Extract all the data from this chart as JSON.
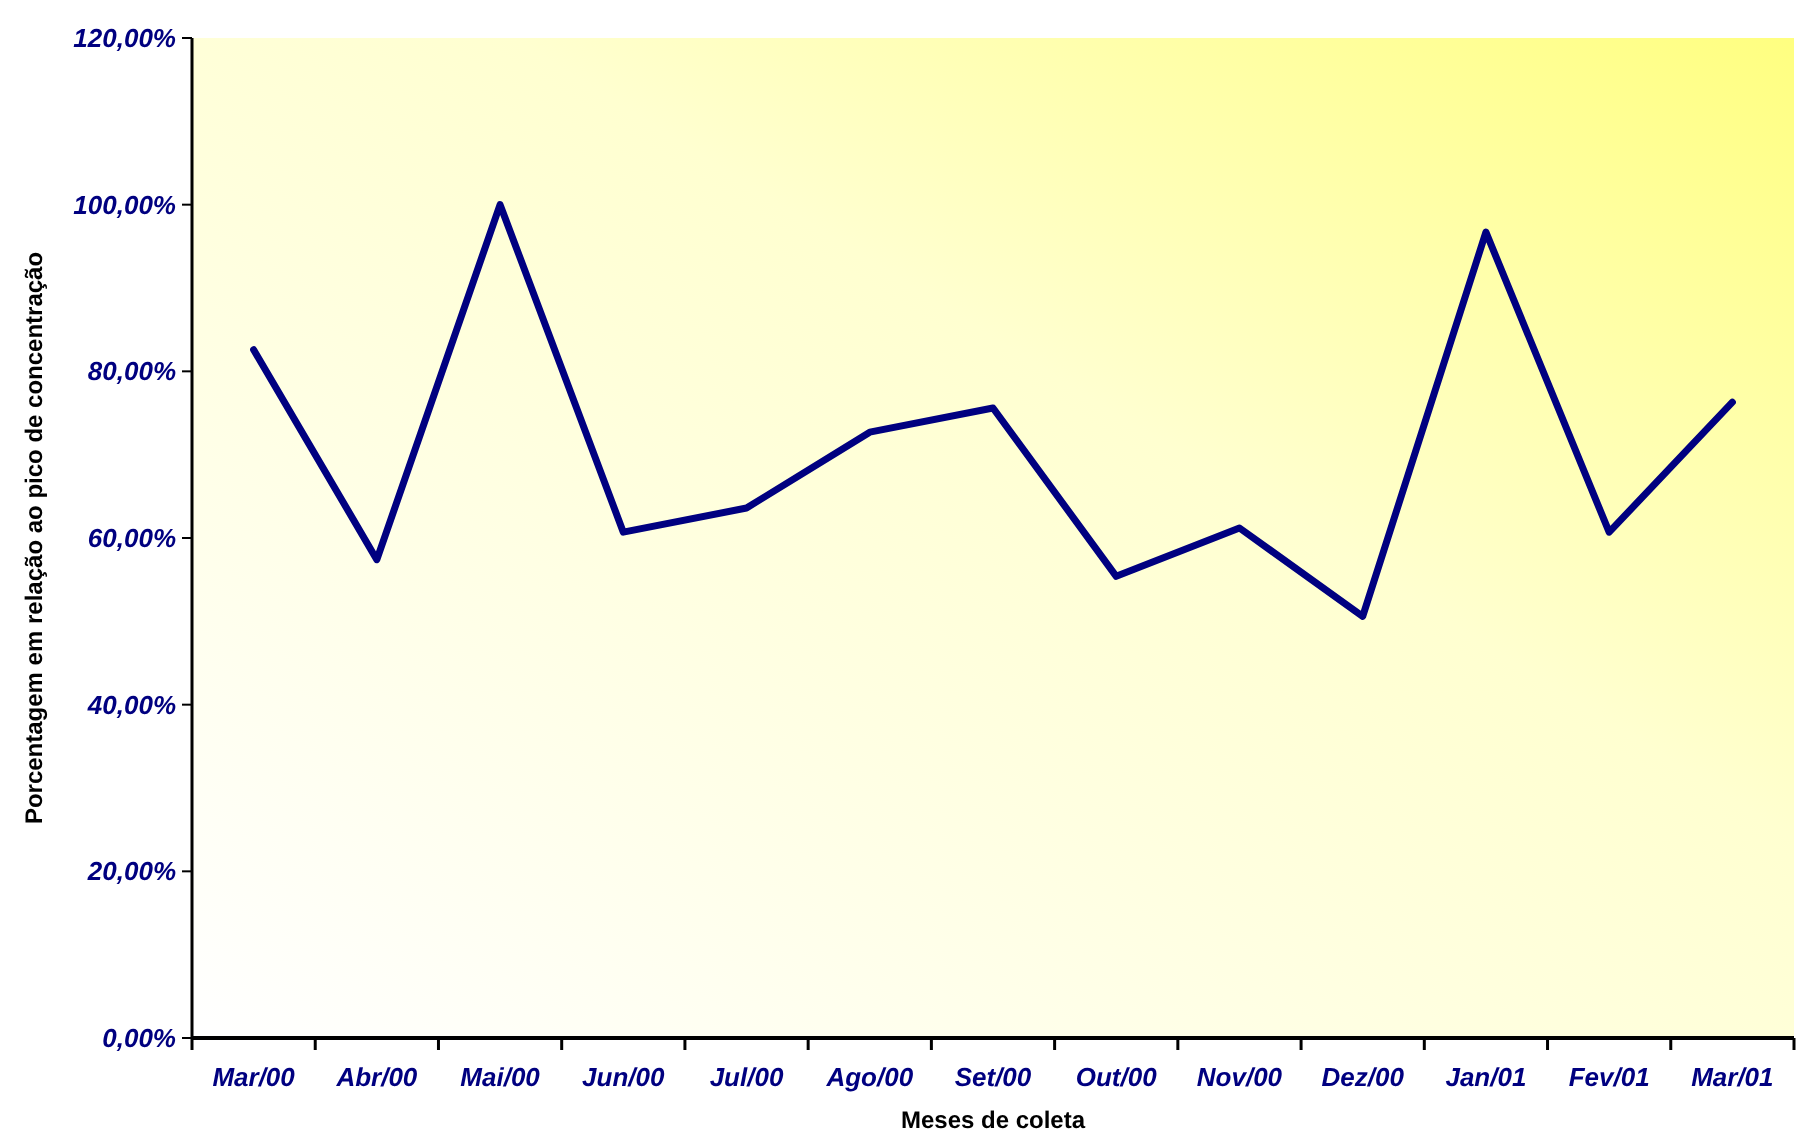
{
  "chart_data": {
    "type": "line",
    "xlabel": "Meses de coleta",
    "ylabel": "Porcentagem em relação ao pico de concentração",
    "categories": [
      "Mar/00",
      "Abr/00",
      "Mai/00",
      "Jun/00",
      "Jul/00",
      "Ago/00",
      "Set/00",
      "Out/00",
      "Nov/00",
      "Dez/00",
      "Jan/01",
      "Fev/01",
      "Mar/01"
    ],
    "series": [
      {
        "color": "#000080",
        "values": [
          82.6,
          57.4,
          100,
          60.7,
          63.6,
          72.7,
          75.6,
          55.4,
          61.2,
          50.6,
          96.7,
          60.7,
          76.3
        ]
      }
    ],
    "ylim": [
      0,
      120
    ],
    "yticks": [
      {
        "value": 0,
        "label": "0,00%"
      },
      {
        "value": 20,
        "label": "20,00%"
      },
      {
        "value": 40,
        "label": "40,00%"
      },
      {
        "value": 60,
        "label": "60,00%"
      },
      {
        "value": 80,
        "label": "80,00%"
      },
      {
        "value": 100,
        "label": "100,00%"
      },
      {
        "value": 120,
        "label": "120,00%"
      }
    ],
    "grid": false,
    "marker": "none",
    "line_style": "solid"
  }
}
